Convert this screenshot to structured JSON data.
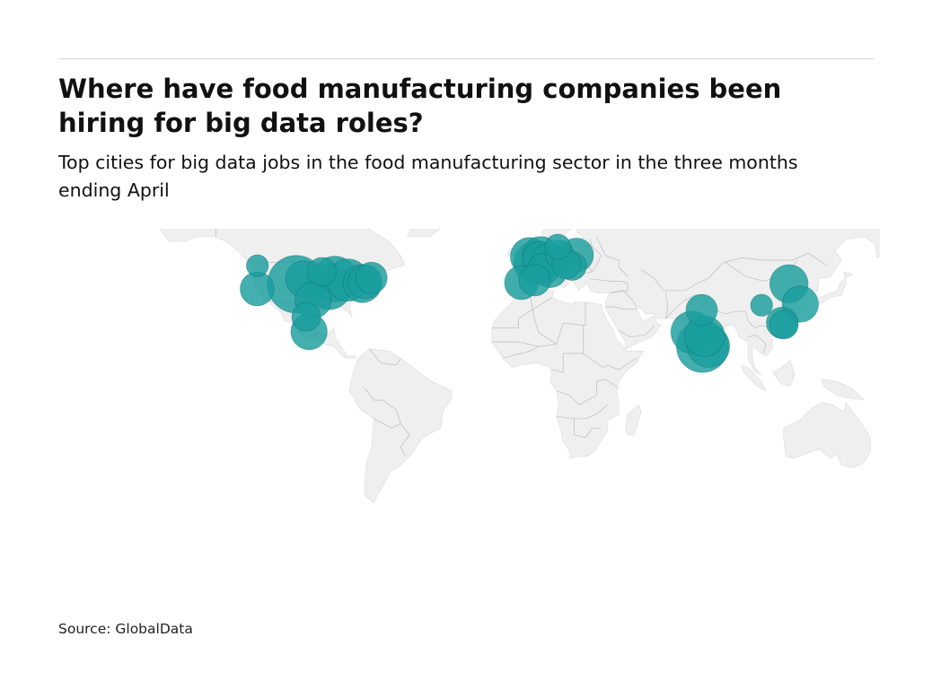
{
  "header": {
    "title": "Where have food manufacturing companies been hiring for big data roles?",
    "subtitle": "Top cities for big data jobs in the food manufacturing sector in the three months ending April"
  },
  "footer": {
    "source": "Source: GlobalData"
  },
  "map": {
    "type": "bubble-map",
    "projection": "equirectangular",
    "land_color": "#efefef",
    "border_color": "#bdbdbd",
    "bubble_color": "#1a9e9e",
    "bubbles": [
      {
        "lon": -122.4,
        "lat": 37.7,
        "size": 0.3
      },
      {
        "lon": -122.3,
        "lat": 47.6,
        "size": 0.1
      },
      {
        "lon": -93.3,
        "lat": 45.0,
        "size": 0.2
      },
      {
        "lon": -104.9,
        "lat": 39.7,
        "size": 1.0
      },
      {
        "lon": -101.5,
        "lat": 42.0,
        "size": 0.35
      },
      {
        "lon": -87.6,
        "lat": 41.9,
        "size": 0.6
      },
      {
        "lon": -90.2,
        "lat": 38.6,
        "size": 0.6
      },
      {
        "lon": -97.3,
        "lat": 32.8,
        "size": 0.35
      },
      {
        "lon": -81.7,
        "lat": 41.5,
        "size": 0.5
      },
      {
        "lon": -75.2,
        "lat": 40.0,
        "size": 0.4
      },
      {
        "lon": -74.0,
        "lat": 40.7,
        "size": 0.3
      },
      {
        "lon": -71.1,
        "lat": 42.4,
        "size": 0.25
      },
      {
        "lon": -99.1,
        "lat": 19.4,
        "size": 0.35
      },
      {
        "lon": -100.4,
        "lat": 25.7,
        "size": 0.2
      },
      {
        "lon": -0.1,
        "lat": 51.5,
        "size": 0.4
      },
      {
        "lon": 2.35,
        "lat": 48.9,
        "size": 0.5
      },
      {
        "lon": 4.9,
        "lat": 52.4,
        "size": 0.35
      },
      {
        "lon": 4.4,
        "lat": 50.8,
        "size": 0.3
      },
      {
        "lon": 8.7,
        "lat": 50.1,
        "size": 0.3
      },
      {
        "lon": 6.1,
        "lat": 46.2,
        "size": 0.25
      },
      {
        "lon": 9.2,
        "lat": 45.5,
        "size": 0.3
      },
      {
        "lon": -3.7,
        "lat": 40.4,
        "size": 0.3
      },
      {
        "lon": 2.2,
        "lat": 41.4,
        "size": 0.25
      },
      {
        "lon": 13.4,
        "lat": 52.5,
        "size": 0.2
      },
      {
        "lon": 21.0,
        "lat": 52.2,
        "size": 0.3
      },
      {
        "lon": 19.0,
        "lat": 47.5,
        "size": 0.2
      },
      {
        "lon": 16.4,
        "lat": 48.2,
        "size": 0.2
      },
      {
        "lon": 12.6,
        "lat": 55.7,
        "size": 0.15
      },
      {
        "lon": 72.9,
        "lat": 19.1,
        "size": 0.5
      },
      {
        "lon": 77.6,
        "lat": 13.0,
        "size": 0.8
      },
      {
        "lon": 78.5,
        "lat": 17.4,
        "size": 0.45
      },
      {
        "lon": 80.3,
        "lat": 13.1,
        "size": 0.5
      },
      {
        "lon": 77.2,
        "lat": 28.6,
        "size": 0.25
      },
      {
        "lon": 116.4,
        "lat": 39.9,
        "size": 0.4
      },
      {
        "lon": 121.5,
        "lat": 31.2,
        "size": 0.35
      },
      {
        "lon": 113.3,
        "lat": 23.1,
        "size": 0.25
      },
      {
        "lon": 114.1,
        "lat": 22.4,
        "size": 0.2
      },
      {
        "lon": 104.1,
        "lat": 30.7,
        "size": 0.1
      }
    ]
  }
}
